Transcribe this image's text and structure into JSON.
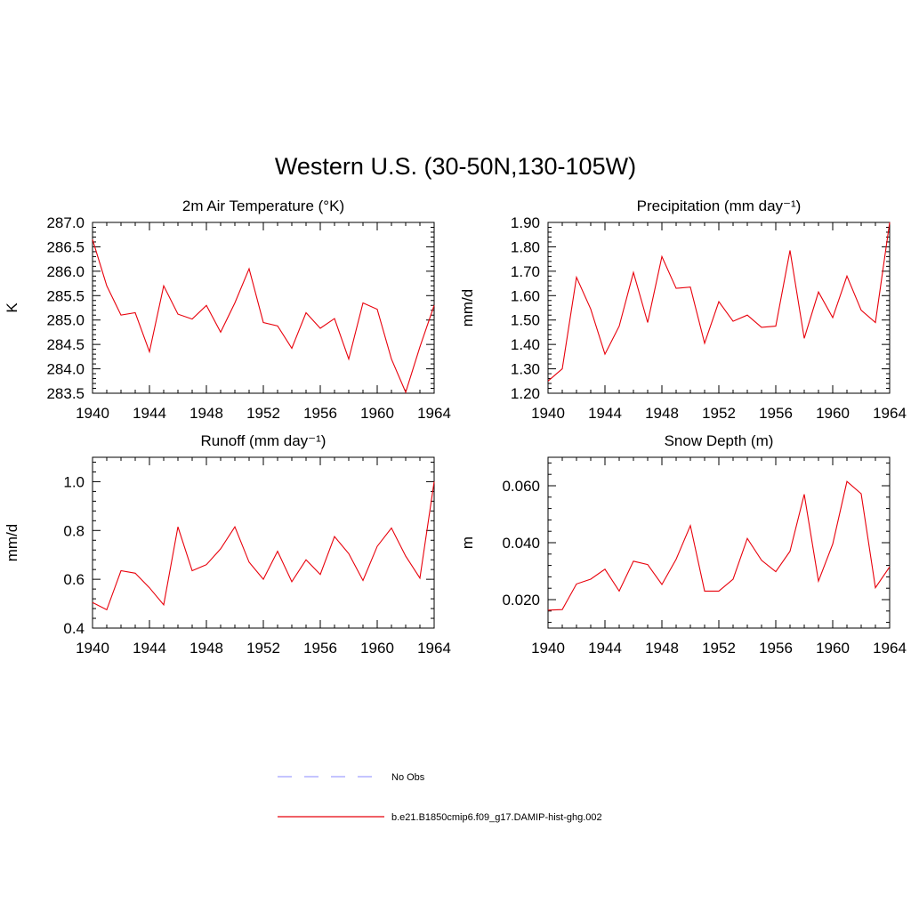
{
  "figure": {
    "title": "Western U.S. (30-50N,130-105W)",
    "line_color": "#e8000b",
    "obs_color": "#a0a0ff"
  },
  "legend": {
    "items": [
      {
        "label": "No Obs",
        "style": "dashed",
        "color": "#a0a0ff"
      },
      {
        "label": "b.e21.B1850cmip6.f09_g17.DAMIP-hist-ghg.002",
        "style": "solid",
        "color": "#e8000b"
      }
    ]
  },
  "chart_data": [
    {
      "type": "line",
      "title": "2m Air Temperature (°K)",
      "xlabel": "",
      "ylabel": "K",
      "xlim": [
        1940,
        1964
      ],
      "ylim": [
        283.5,
        287.0
      ],
      "xticks": [
        "1940",
        "1944",
        "1948",
        "1952",
        "1956",
        "1960",
        "1964"
      ],
      "yticks": [
        "283.5",
        "284.0",
        "284.5",
        "285.0",
        "285.5",
        "286.0",
        "286.5",
        "287.0"
      ],
      "x": [
        1940,
        1941,
        1942,
        1943,
        1944,
        1945,
        1946,
        1947,
        1948,
        1949,
        1950,
        1951,
        1952,
        1953,
        1954,
        1955,
        1956,
        1957,
        1958,
        1959,
        1960,
        1961,
        1962,
        1963,
        1964
      ],
      "series": [
        {
          "values": [
            286.65,
            285.7,
            285.1,
            285.15,
            284.35,
            285.7,
            285.12,
            285.02,
            285.3,
            284.75,
            285.35,
            286.05,
            284.95,
            284.88,
            284.42,
            285.15,
            284.83,
            285.03,
            284.2,
            285.35,
            285.22,
            284.2,
            283.52,
            284.45,
            285.3
          ]
        }
      ]
    },
    {
      "type": "line",
      "title": "Precipitation (mm day⁻¹)",
      "xlabel": "",
      "ylabel": "mm/d",
      "xlim": [
        1940,
        1964
      ],
      "ylim": [
        1.2,
        1.9
      ],
      "xticks": [
        "1940",
        "1944",
        "1948",
        "1952",
        "1956",
        "1960",
        "1964"
      ],
      "yticks": [
        "1.20",
        "1.30",
        "1.40",
        "1.50",
        "1.60",
        "1.70",
        "1.80",
        "1.90"
      ],
      "x": [
        1940,
        1941,
        1942,
        1943,
        1944,
        1945,
        1946,
        1947,
        1948,
        1949,
        1950,
        1951,
        1952,
        1953,
        1954,
        1955,
        1956,
        1957,
        1958,
        1959,
        1960,
        1961,
        1962,
        1963,
        1964
      ],
      "series": [
        {
          "values": [
            1.25,
            1.3,
            1.675,
            1.545,
            1.36,
            1.475,
            1.695,
            1.49,
            1.76,
            1.63,
            1.635,
            1.405,
            1.575,
            1.495,
            1.52,
            1.47,
            1.475,
            1.785,
            1.425,
            1.615,
            1.51,
            1.68,
            1.54,
            1.49,
            1.9
          ]
        }
      ]
    },
    {
      "type": "line",
      "title": "Runoff (mm day⁻¹)",
      "xlabel": "",
      "ylabel": "mm/d",
      "xlim": [
        1940,
        1964
      ],
      "ylim": [
        0.4,
        1.1
      ],
      "xticks": [
        "1940",
        "1944",
        "1948",
        "1952",
        "1956",
        "1960",
        "1964"
      ],
      "yticks": [
        "0.4",
        "0.6",
        "0.8",
        "1.0"
      ],
      "x": [
        1940,
        1941,
        1942,
        1943,
        1944,
        1945,
        1946,
        1947,
        1948,
        1949,
        1950,
        1951,
        1952,
        1953,
        1954,
        1955,
        1956,
        1957,
        1958,
        1959,
        1960,
        1961,
        1962,
        1963,
        1964
      ],
      "series": [
        {
          "values": [
            0.505,
            0.475,
            0.635,
            0.625,
            0.565,
            0.495,
            0.815,
            0.635,
            0.66,
            0.725,
            0.815,
            0.67,
            0.6,
            0.715,
            0.59,
            0.68,
            0.62,
            0.775,
            0.705,
            0.595,
            0.735,
            0.81,
            0.695,
            0.605,
            1.0
          ]
        }
      ]
    },
    {
      "type": "line",
      "title": "Snow Depth (m)",
      "xlabel": "",
      "ylabel": "m",
      "xlim": [
        1940,
        1964
      ],
      "ylim": [
        0.01,
        0.07
      ],
      "xticks": [
        "1940",
        "1944",
        "1948",
        "1952",
        "1956",
        "1960",
        "1964"
      ],
      "yticks": [
        "0.020",
        "0.040",
        "0.060"
      ],
      "x": [
        1940,
        1941,
        1942,
        1943,
        1944,
        1945,
        1946,
        1947,
        1948,
        1949,
        1950,
        1951,
        1952,
        1953,
        1954,
        1955,
        1956,
        1957,
        1958,
        1959,
        1960,
        1961,
        1962,
        1963,
        1964
      ],
      "series": [
        {
          "values": [
            0.0163,
            0.0165,
            0.0255,
            0.0272,
            0.0307,
            0.023,
            0.0335,
            0.0323,
            0.0253,
            0.0342,
            0.046,
            0.023,
            0.023,
            0.0272,
            0.0415,
            0.0338,
            0.0298,
            0.037,
            0.057,
            0.0265,
            0.0395,
            0.0615,
            0.0572,
            0.0242,
            0.0315
          ]
        }
      ]
    }
  ]
}
